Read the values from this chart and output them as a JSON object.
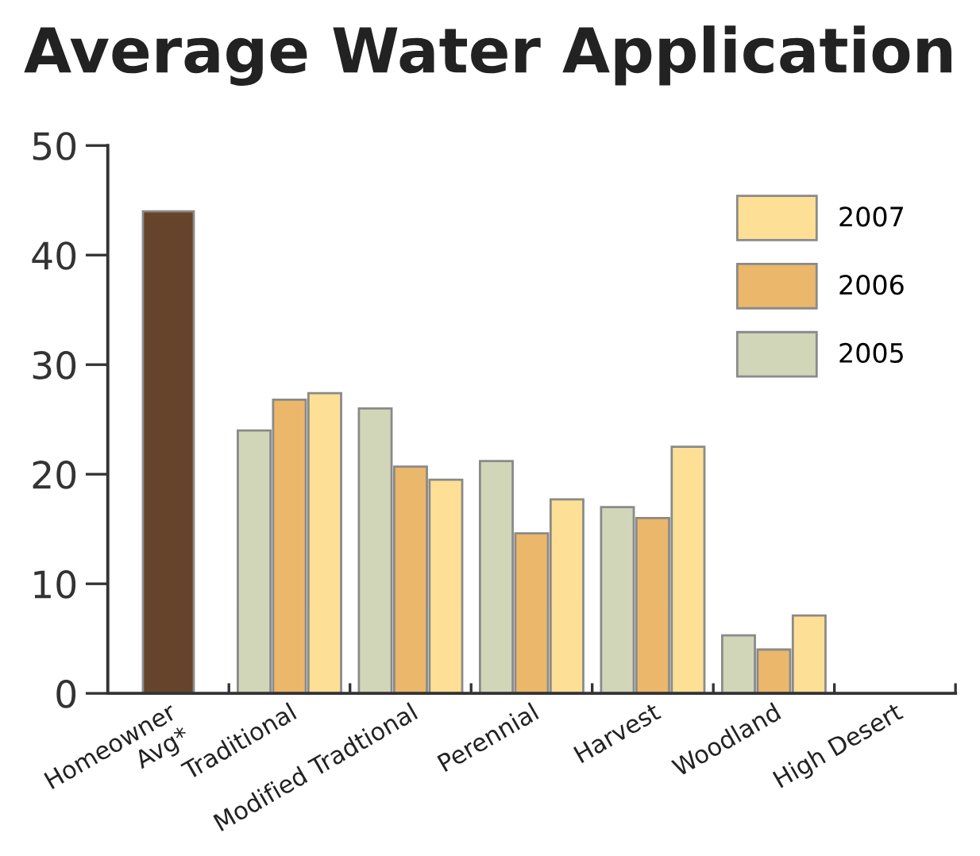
{
  "chart_data": {
    "type": "bar",
    "title": "Average Water Application",
    "categories": [
      "Homeowner\nAvg*",
      "Traditional",
      "Modified Tradtional",
      "Perennial",
      "Harvest",
      "Woodland",
      "High Desert"
    ],
    "series": [
      {
        "color": "#66432b",
        "values": [
          44,
          null,
          null,
          null,
          null,
          null,
          null
        ]
      },
      {
        "name": "2005",
        "color": "#d2d6b9",
        "values": [
          null,
          24,
          26,
          21.2,
          17,
          5.3,
          null
        ]
      },
      {
        "name": "2006",
        "color": "#ebb76a",
        "values": [
          null,
          26.8,
          20.7,
          14.6,
          16,
          4,
          null
        ]
      },
      {
        "name": "2007",
        "color": "#fde095",
        "values": [
          null,
          27.4,
          19.5,
          17.7,
          22.5,
          7.1,
          null
        ]
      }
    ],
    "ylim": [
      0,
      50
    ],
    "yticks": [
      0,
      10,
      20,
      30,
      40,
      50
    ],
    "grid": false,
    "legend": "top right"
  }
}
